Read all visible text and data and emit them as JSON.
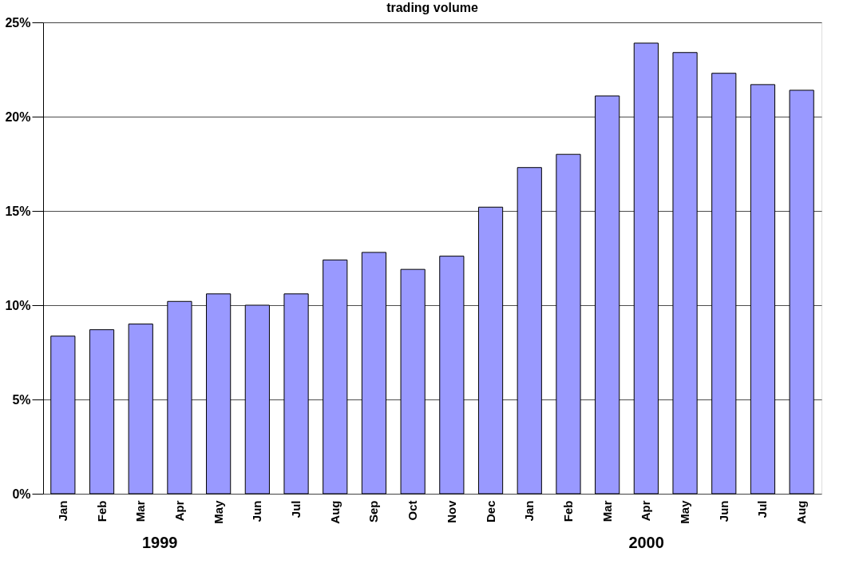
{
  "chart_data": {
    "type": "bar",
    "title": "trading volume",
    "categories": [
      "Jan",
      "Feb",
      "Mar",
      "Apr",
      "May",
      "Jun",
      "Jul",
      "Aug",
      "Sep",
      "Oct",
      "Nov",
      "Dec",
      "Jan",
      "Feb",
      "Mar",
      "Apr",
      "May",
      "Jun",
      "Jul",
      "Aug"
    ],
    "values": [
      8.36,
      8.7,
      9.0,
      10.2,
      10.6,
      10.0,
      10.6,
      12.4,
      12.8,
      11.9,
      12.6,
      15.2,
      17.3,
      18.0,
      21.1,
      23.9,
      23.4,
      22.3,
      21.7,
      21.4
    ],
    "color": "#9999ff",
    "ylim": [
      0,
      25
    ],
    "yticks": [
      {
        "value": 0,
        "label": "0%"
      },
      {
        "value": 5,
        "label": "5%"
      },
      {
        "value": 10,
        "label": "10%"
      },
      {
        "value": 15,
        "label": "15%"
      },
      {
        "value": 20,
        "label": "20%"
      },
      {
        "value": 25,
        "label": "25%"
      }
    ],
    "grid": "y",
    "annotations": [
      "1999",
      "2000"
    ]
  }
}
